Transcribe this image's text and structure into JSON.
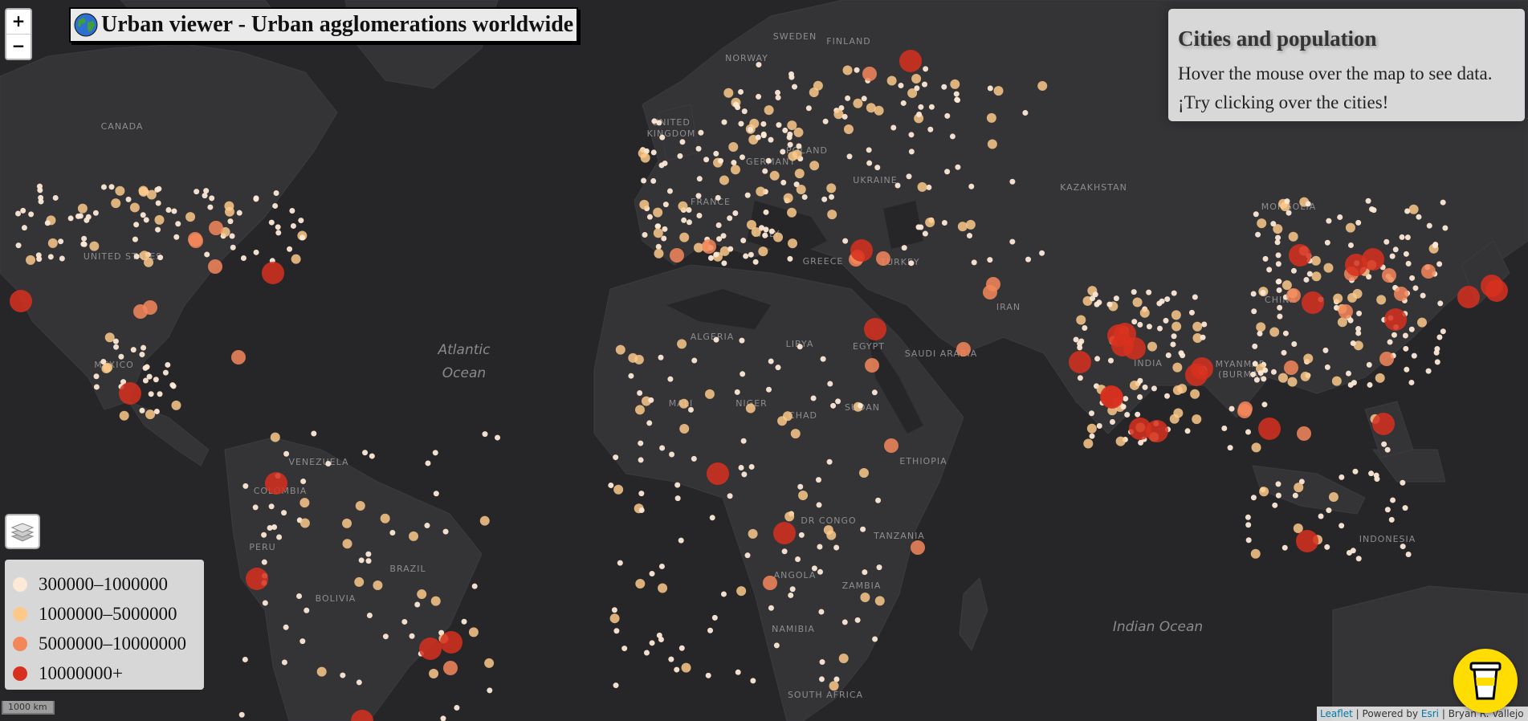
{
  "title": "Urban viewer - Urban agglomerations worldwide",
  "zoom": {
    "in": "+",
    "out": "−"
  },
  "info": {
    "heading": "Cities and population",
    "line1": "Hover the mouse over the map to see data.",
    "line2": "¡Try clicking over the cities!"
  },
  "legend": [
    {
      "label": "300000–1000000",
      "color": "#fde9d6"
    },
    {
      "label": "1000000–5000000",
      "color": "#fdc98a"
    },
    {
      "label": "5000000–10000000",
      "color": "#f4875a"
    },
    {
      "label": "10000000+",
      "color": "#d7301f"
    }
  ],
  "scale": "1000 km",
  "attribution": {
    "leaflet": "Leaflet",
    "powered": " | Powered by ",
    "esri": "Esri",
    "author": " | Bryan R. Vallejo"
  },
  "map_labels": {
    "countries": [
      "SWEDEN",
      "FINLAND",
      "NORWAY",
      "CANADA",
      "UNITED",
      "KINGDOM",
      "POLAND",
      "GERMANY",
      "UKRAINE",
      "FRANCE",
      "ITALY",
      "KAZAKHSTAN",
      "MONGOLIA",
      "UNITED STATES",
      "GREECE",
      "TURKEY",
      "IRAN",
      "CHINA",
      "ALGERIA",
      "LIBYA",
      "EGYPT",
      "SAUDI ARABIA",
      "MEXICO",
      "INDIA",
      "MYANMAR",
      "(BURMA)",
      "MALI",
      "NIGER",
      "CHAD",
      "SUDAN",
      "VENEZUELA",
      "COLOMBIA",
      "ETHIOPIA",
      "DR CONGO",
      "TANZANIA",
      "INDONESIA",
      "PERU",
      "BRAZIL",
      "BOLIVIA",
      "ANGOLA",
      "ZAMBIA",
      "NAMIBIA",
      "SOUTH AFRICA"
    ],
    "oceans": [
      "Atlantic",
      "Ocean",
      "Indian Ocean"
    ]
  },
  "colors": {
    "background": "#262628",
    "land": "#343437",
    "water": "#262628"
  }
}
